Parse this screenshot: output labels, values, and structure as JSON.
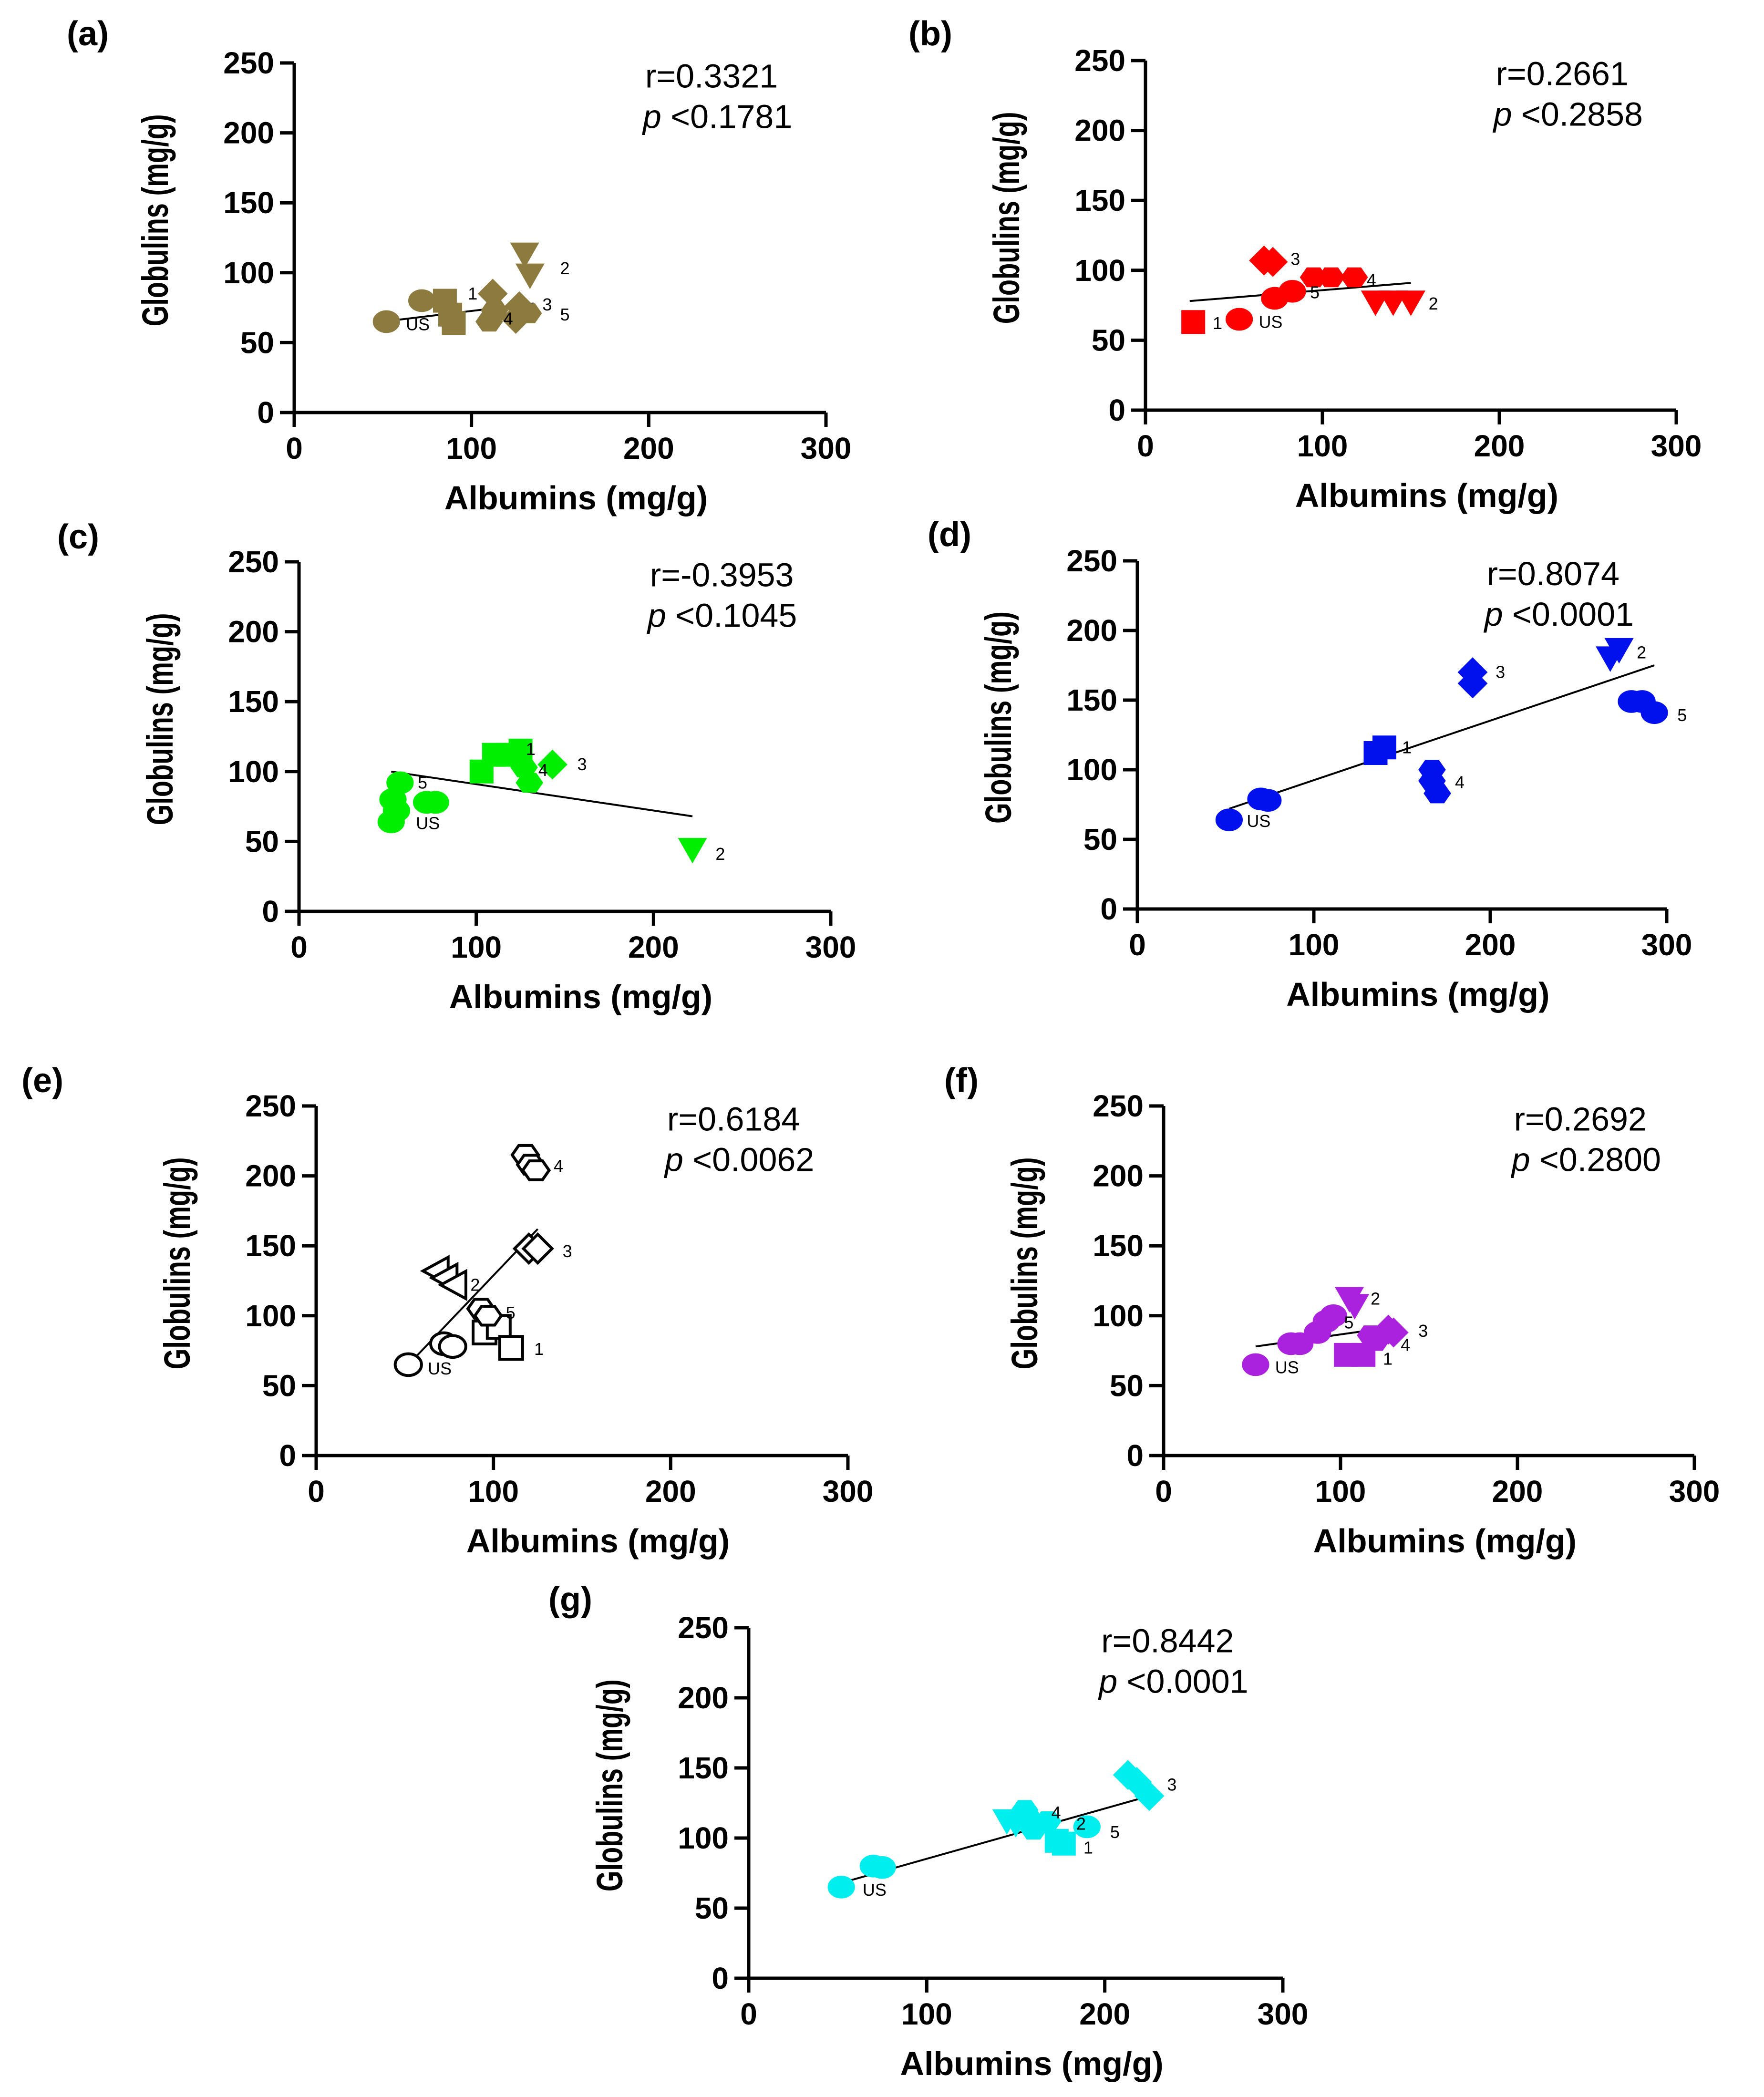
{
  "chart_data": [
    {
      "panel": "(a)",
      "type": "scatter",
      "color": "#8c7a3e",
      "hollow": false,
      "xlabel": "Albumins (mg/g)",
      "ylabel": "Globulins (mg/g)",
      "xlim": [
        0,
        300
      ],
      "ylim": [
        0,
        250
      ],
      "xticks": [
        "0",
        "100",
        "200",
        "300"
      ],
      "yticks": [
        "0",
        "50",
        "100",
        "150",
        "200",
        "250"
      ],
      "r_text": "r=0.3321",
      "p_label": "p",
      "p_text": " <0.1781",
      "fit_line": [
        [
          50,
          65
        ],
        [
          135,
          78
        ]
      ],
      "points": [
        {
          "x": 52,
          "y": 65,
          "shape": "circle"
        },
        {
          "x": 72,
          "y": 80,
          "shape": "circle"
        },
        {
          "x": 85,
          "y": 80,
          "shape": "square"
        },
        {
          "x": 88,
          "y": 70,
          "shape": "square"
        },
        {
          "x": 90,
          "y": 64,
          "shape": "square"
        },
        {
          "x": 112,
          "y": 85,
          "shape": "diamond"
        },
        {
          "x": 125,
          "y": 67,
          "shape": "diamond"
        },
        {
          "x": 110,
          "y": 65,
          "shape": "hexagon"
        },
        {
          "x": 113,
          "y": 73,
          "shape": "hexagon"
        },
        {
          "x": 130,
          "y": 113,
          "shape": "tri-down"
        },
        {
          "x": 133,
          "y": 98,
          "shape": "tri-down"
        },
        {
          "x": 127,
          "y": 76,
          "shape": "diamond"
        },
        {
          "x": 132,
          "y": 71,
          "shape": "hexagon"
        }
      ],
      "point_labels": [
        {
          "text": "US",
          "x": 63,
          "y": 63
        },
        {
          "text": "1",
          "x": 98,
          "y": 85
        },
        {
          "text": "2",
          "x": 150,
          "y": 103
        },
        {
          "text": "3",
          "x": 140,
          "y": 77
        },
        {
          "text": "4",
          "x": 118,
          "y": 67
        },
        {
          "text": "5",
          "x": 150,
          "y": 70
        }
      ]
    },
    {
      "panel": "(b)",
      "type": "scatter",
      "color": "#ff0000",
      "hollow": false,
      "xlabel": "Albumins (mg/g)",
      "ylabel": "Globulins (mg/g)",
      "xlim": [
        0,
        300
      ],
      "ylim": [
        0,
        250
      ],
      "xticks": [
        "0",
        "100",
        "200",
        "300"
      ],
      "yticks": [
        "0",
        "50",
        "100",
        "150",
        "200",
        "250"
      ],
      "r_text": "r=0.2661",
      "p_label": "p",
      "p_text": " <0.2858",
      "fit_line": [
        [
          25,
          78
        ],
        [
          150,
          91
        ]
      ],
      "points": [
        {
          "x": 27,
          "y": 63,
          "shape": "square"
        },
        {
          "x": 53,
          "y": 65,
          "shape": "circle"
        },
        {
          "x": 73,
          "y": 80,
          "shape": "circle"
        },
        {
          "x": 83,
          "y": 85,
          "shape": "circle"
        },
        {
          "x": 67,
          "y": 107,
          "shape": "diamond"
        },
        {
          "x": 72,
          "y": 106,
          "shape": "diamond"
        },
        {
          "x": 95,
          "y": 95,
          "shape": "hexagon"
        },
        {
          "x": 105,
          "y": 95,
          "shape": "hexagon"
        },
        {
          "x": 118,
          "y": 95,
          "shape": "hexagon"
        },
        {
          "x": 130,
          "y": 77,
          "shape": "tri-down"
        },
        {
          "x": 140,
          "y": 77,
          "shape": "tri-down"
        },
        {
          "x": 150,
          "y": 77,
          "shape": "tri-down"
        }
      ],
      "point_labels": [
        {
          "text": "1",
          "x": 38,
          "y": 62
        },
        {
          "text": "US",
          "x": 64,
          "y": 63
        },
        {
          "text": "3",
          "x": 82,
          "y": 108
        },
        {
          "text": "4",
          "x": 125,
          "y": 93
        },
        {
          "text": "5",
          "x": 93,
          "y": 84
        },
        {
          "text": "2",
          "x": 160,
          "y": 76
        }
      ]
    },
    {
      "panel": "(c)",
      "type": "scatter",
      "color": "#00ee00",
      "hollow": false,
      "xlabel": "Albumins (mg/g)",
      "ylabel": "Globulins (mg/g)",
      "xlim": [
        0,
        300
      ],
      "ylim": [
        0,
        250
      ],
      "xticks": [
        "0",
        "100",
        "200",
        "300"
      ],
      "yticks": [
        "0",
        "50",
        "100",
        "150",
        "200",
        "250"
      ],
      "r_text": "r=-0.3953",
      "p_label": "p",
      "p_text": " <0.1045",
      "fit_line": [
        [
          52,
          100
        ],
        [
          222,
          68
        ]
      ],
      "points": [
        {
          "x": 52,
          "y": 64,
          "shape": "circle"
        },
        {
          "x": 53,
          "y": 80,
          "shape": "circle"
        },
        {
          "x": 55,
          "y": 72,
          "shape": "circle"
        },
        {
          "x": 57,
          "y": 92,
          "shape": "circle"
        },
        {
          "x": 72,
          "y": 78,
          "shape": "circle"
        },
        {
          "x": 77,
          "y": 78,
          "shape": "circle"
        },
        {
          "x": 103,
          "y": 100,
          "shape": "square"
        },
        {
          "x": 110,
          "y": 112,
          "shape": "square"
        },
        {
          "x": 118,
          "y": 112,
          "shape": "square"
        },
        {
          "x": 125,
          "y": 115,
          "shape": "square"
        },
        {
          "x": 127,
          "y": 103,
          "shape": "hexagon"
        },
        {
          "x": 130,
          "y": 92,
          "shape": "hexagon"
        },
        {
          "x": 143,
          "y": 105,
          "shape": "diamond"
        },
        {
          "x": 222,
          "y": 44,
          "shape": "tri-down"
        }
      ],
      "point_labels": [
        {
          "text": "1",
          "x": 128,
          "y": 116
        },
        {
          "text": "3",
          "x": 157,
          "y": 105
        },
        {
          "text": "4",
          "x": 135,
          "y": 101
        },
        {
          "text": "5",
          "x": 67,
          "y": 92
        },
        {
          "text": "US",
          "x": 66,
          "y": 63
        },
        {
          "text": "2",
          "x": 235,
          "y": 41
        }
      ]
    },
    {
      "panel": "(d)",
      "type": "scatter",
      "color": "#0011ee",
      "hollow": false,
      "xlabel": "Albumins (mg/g)",
      "ylabel": "Globulins (mg/g)",
      "xlim": [
        0,
        300
      ],
      "ylim": [
        0,
        250
      ],
      "xticks": [
        "0",
        "100",
        "200",
        "300"
      ],
      "yticks": [
        "0",
        "50",
        "100",
        "150",
        "200",
        "250"
      ],
      "r_text": "r=0.8074",
      "p_label": "p",
      "p_text": " <0.0001",
      "fit_line": [
        [
          52,
          72
        ],
        [
          293,
          175
        ]
      ],
      "points": [
        {
          "x": 52,
          "y": 64,
          "shape": "circle"
        },
        {
          "x": 70,
          "y": 79,
          "shape": "circle"
        },
        {
          "x": 74,
          "y": 78,
          "shape": "circle"
        },
        {
          "x": 135,
          "y": 112,
          "shape": "square"
        },
        {
          "x": 140,
          "y": 116,
          "shape": "square"
        },
        {
          "x": 167,
          "y": 100,
          "shape": "hexagon"
        },
        {
          "x": 167,
          "y": 92,
          "shape": "hexagon"
        },
        {
          "x": 170,
          "y": 83,
          "shape": "hexagon"
        },
        {
          "x": 190,
          "y": 170,
          "shape": "diamond"
        },
        {
          "x": 190,
          "y": 162,
          "shape": "diamond"
        },
        {
          "x": 268,
          "y": 180,
          "shape": "tri-down"
        },
        {
          "x": 273,
          "y": 186,
          "shape": "tri-down"
        },
        {
          "x": 280,
          "y": 149,
          "shape": "circle"
        },
        {
          "x": 286,
          "y": 149,
          "shape": "circle"
        },
        {
          "x": 293,
          "y": 141,
          "shape": "circle"
        }
      ],
      "point_labels": [
        {
          "text": "US",
          "x": 62,
          "y": 63
        },
        {
          "text": "1",
          "x": 150,
          "y": 116
        },
        {
          "text": "3",
          "x": 203,
          "y": 170
        },
        {
          "text": "4",
          "x": 180,
          "y": 91
        },
        {
          "text": "2",
          "x": 283,
          "y": 184
        },
        {
          "text": "5",
          "x": 306,
          "y": 139
        }
      ]
    },
    {
      "panel": "(e)",
      "type": "scatter",
      "color": "#000000",
      "hollow": true,
      "xlabel": "Albumins (mg/g)",
      "ylabel": "Globulins (mg/g)",
      "xlim": [
        0,
        300
      ],
      "ylim": [
        0,
        250
      ],
      "xticks": [
        "0",
        "100",
        "200",
        "300"
      ],
      "yticks": [
        "0",
        "50",
        "100",
        "150",
        "200",
        "250"
      ],
      "r_text": "r=0.6184",
      "p_label": "p",
      "p_text": " <0.0062",
      "fit_line": [
        [
          52,
          65
        ],
        [
          125,
          162
        ]
      ],
      "points": [
        {
          "x": 52,
          "y": 65,
          "shape": "circle"
        },
        {
          "x": 72,
          "y": 80,
          "shape": "circle"
        },
        {
          "x": 77,
          "y": 78,
          "shape": "circle"
        },
        {
          "x": 95,
          "y": 88,
          "shape": "square"
        },
        {
          "x": 103,
          "y": 92,
          "shape": "square"
        },
        {
          "x": 110,
          "y": 77,
          "shape": "square"
        },
        {
          "x": 68,
          "y": 132,
          "shape": "tri-left"
        },
        {
          "x": 73,
          "y": 127,
          "shape": "tri-left"
        },
        {
          "x": 78,
          "y": 122,
          "shape": "tri-left"
        },
        {
          "x": 93,
          "y": 105,
          "shape": "hexagon"
        },
        {
          "x": 97,
          "y": 100,
          "shape": "hexagon"
        },
        {
          "x": 118,
          "y": 215,
          "shape": "hexagon"
        },
        {
          "x": 121,
          "y": 208,
          "shape": "hexagon"
        },
        {
          "x": 124,
          "y": 204,
          "shape": "hexagon"
        },
        {
          "x": 120,
          "y": 148,
          "shape": "diamond"
        },
        {
          "x": 125,
          "y": 148,
          "shape": "diamond"
        }
      ],
      "point_labels": [
        {
          "text": "US",
          "x": 63,
          "y": 62
        },
        {
          "text": "1",
          "x": 123,
          "y": 76
        },
        {
          "text": "5",
          "x": 107,
          "y": 102
        },
        {
          "text": "2",
          "x": 87,
          "y": 122
        },
        {
          "text": "3",
          "x": 139,
          "y": 146
        },
        {
          "text": "4",
          "x": 134,
          "y": 207
        }
      ]
    },
    {
      "panel": "(f)",
      "type": "scatter",
      "color": "#aa22dd",
      "hollow": false,
      "xlabel": "Albumins (mg/g)",
      "ylabel": "Globulins (mg/g)",
      "xlim": [
        0,
        300
      ],
      "ylim": [
        0,
        250
      ],
      "xticks": [
        "0",
        "100",
        "200",
        "300"
      ],
      "yticks": [
        "0",
        "50",
        "100",
        "150",
        "200",
        "250"
      ],
      "r_text": "r=0.2692",
      "p_label": "p",
      "p_text": " <0.2800",
      "fit_line": [
        [
          52,
          78
        ],
        [
          130,
          92
        ]
      ],
      "points": [
        {
          "x": 52,
          "y": 65,
          "shape": "circle"
        },
        {
          "x": 72,
          "y": 80,
          "shape": "circle"
        },
        {
          "x": 77,
          "y": 80,
          "shape": "circle"
        },
        {
          "x": 87,
          "y": 88,
          "shape": "circle"
        },
        {
          "x": 92,
          "y": 96,
          "shape": "circle"
        },
        {
          "x": 96,
          "y": 100,
          "shape": "circle"
        },
        {
          "x": 105,
          "y": 112,
          "shape": "tri-down"
        },
        {
          "x": 108,
          "y": 107,
          "shape": "tri-down"
        },
        {
          "x": 103,
          "y": 72,
          "shape": "square"
        },
        {
          "x": 113,
          "y": 72,
          "shape": "square"
        },
        {
          "x": 117,
          "y": 86,
          "shape": "hexagon"
        },
        {
          "x": 120,
          "y": 82,
          "shape": "hexagon"
        },
        {
          "x": 127,
          "y": 90,
          "shape": "diamond"
        },
        {
          "x": 130,
          "y": 88,
          "shape": "diamond"
        }
      ],
      "point_labels": [
        {
          "text": "US",
          "x": 63,
          "y": 63
        },
        {
          "text": "5",
          "x": 102,
          "y": 95
        },
        {
          "text": "2",
          "x": 117,
          "y": 112
        },
        {
          "text": "3",
          "x": 144,
          "y": 89
        },
        {
          "text": "4",
          "x": 134,
          "y": 79
        },
        {
          "text": "1",
          "x": 124,
          "y": 69
        }
      ]
    },
    {
      "panel": "(g)",
      "type": "scatter",
      "color": "#00eeee",
      "hollow": false,
      "xlabel": "Albumins (mg/g)",
      "ylabel": "Globulins (mg/g)",
      "xlim": [
        0,
        300
      ],
      "ylim": [
        0,
        250
      ],
      "xticks": [
        "0",
        "100",
        "200",
        "300"
      ],
      "yticks": [
        "0",
        "50",
        "100",
        "150",
        "200",
        "250"
      ],
      "r_text": "r=0.8442",
      "p_label": "p",
      "p_text": " <0.0001",
      "fit_line": [
        [
          52,
          68
        ],
        [
          225,
          130
        ]
      ],
      "points": [
        {
          "x": 52,
          "y": 65,
          "shape": "circle"
        },
        {
          "x": 70,
          "y": 80,
          "shape": "circle"
        },
        {
          "x": 75,
          "y": 79,
          "shape": "circle"
        },
        {
          "x": 145,
          "y": 112,
          "shape": "tri-down"
        },
        {
          "x": 150,
          "y": 110,
          "shape": "tri-down"
        },
        {
          "x": 155,
          "y": 120,
          "shape": "hexagon"
        },
        {
          "x": 158,
          "y": 113,
          "shape": "hexagon"
        },
        {
          "x": 160,
          "y": 106,
          "shape": "hexagon"
        },
        {
          "x": 168,
          "y": 112,
          "shape": "hexagon"
        },
        {
          "x": 173,
          "y": 98,
          "shape": "square"
        },
        {
          "x": 177,
          "y": 96,
          "shape": "square"
        },
        {
          "x": 190,
          "y": 108,
          "shape": "circle"
        },
        {
          "x": 213,
          "y": 145,
          "shape": "diamond"
        },
        {
          "x": 218,
          "y": 140,
          "shape": "diamond"
        },
        {
          "x": 225,
          "y": 130,
          "shape": "diamond"
        }
      ],
      "point_labels": [
        {
          "text": "US",
          "x": 64,
          "y": 63
        },
        {
          "text": "4",
          "x": 170,
          "y": 118
        },
        {
          "text": "2",
          "x": 184,
          "y": 110
        },
        {
          "text": "5",
          "x": 203,
          "y": 104
        },
        {
          "text": "1",
          "x": 188,
          "y": 93
        },
        {
          "text": "3",
          "x": 235,
          "y": 138
        }
      ]
    }
  ]
}
